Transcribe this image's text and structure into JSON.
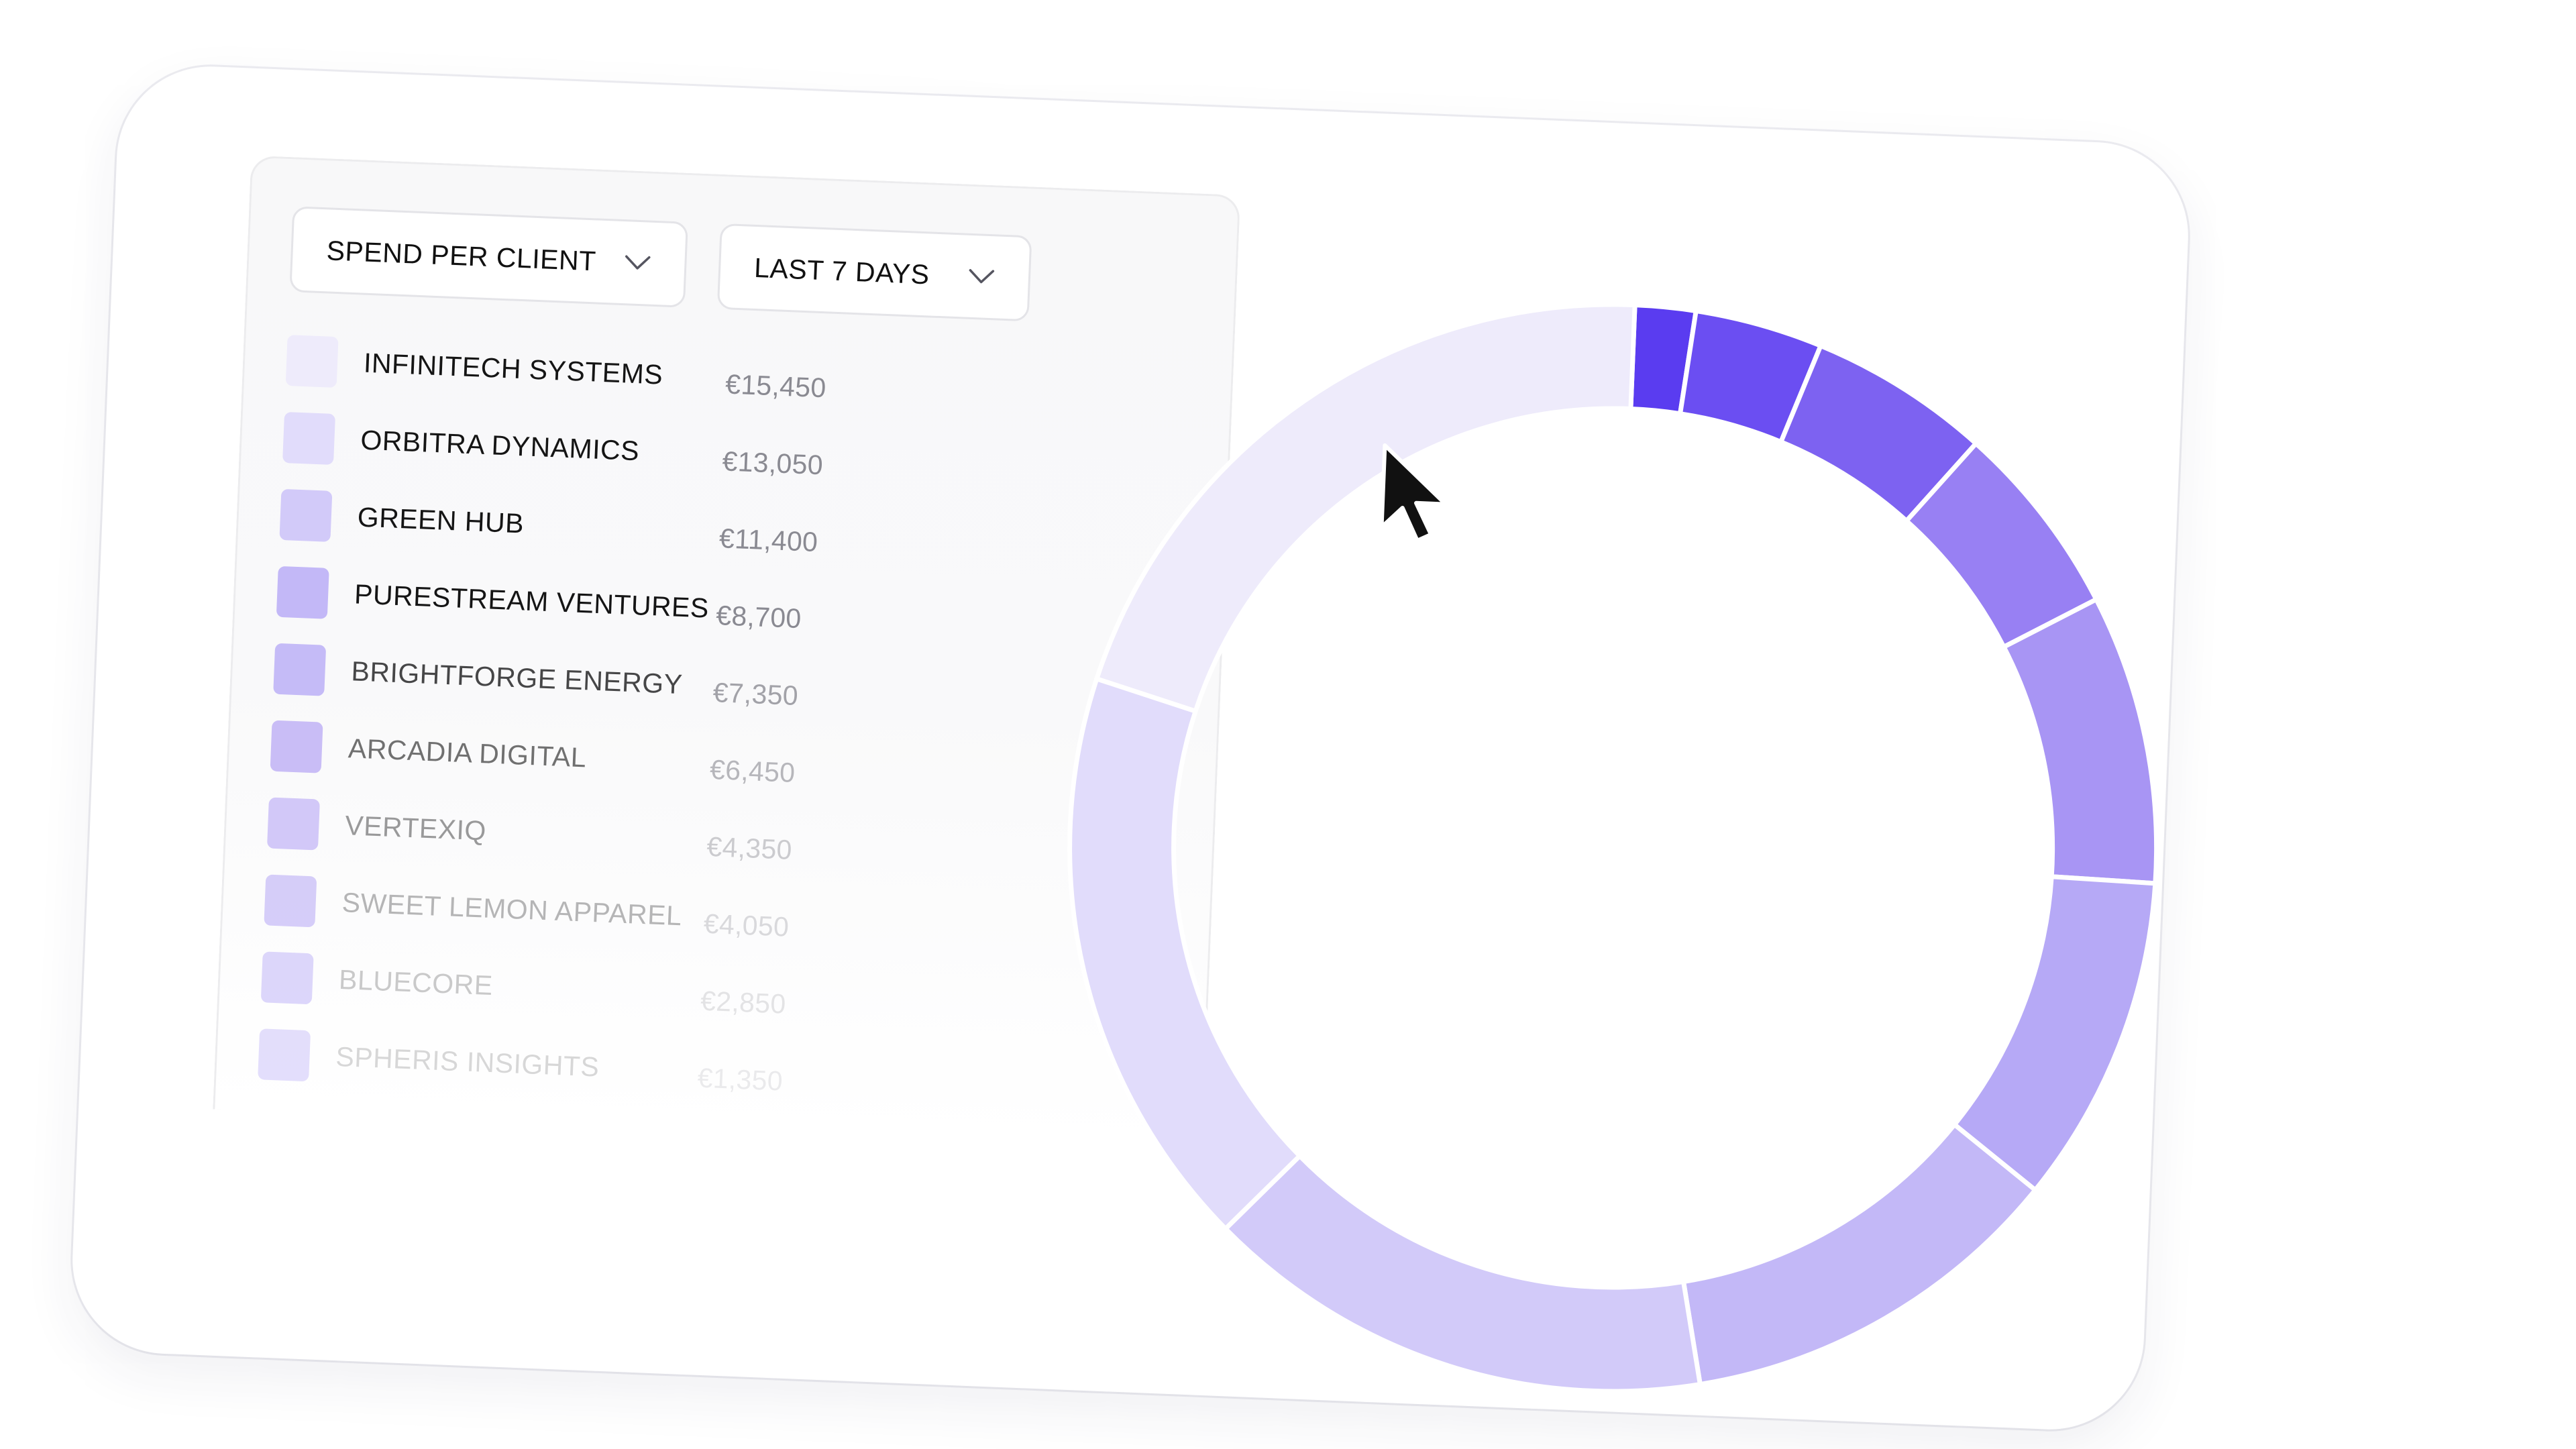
{
  "filters": {
    "metric": "SPEND PER CLIENT",
    "range": "LAST 7 DAYS"
  },
  "icons": {
    "dropdown": "chevron-down-icon",
    "pointer": "mouse-pointer-icon"
  },
  "colors": {
    "accent": "#5a3cf0",
    "ring_base": "#eeebfb"
  },
  "clients": [
    {
      "name": "INFINITECH SYSTEMS",
      "value": "€15,450",
      "color": "#eeebfb"
    },
    {
      "name": "ORBITRA DYNAMICS",
      "value": "€13,050",
      "color": "#e1dcfb"
    },
    {
      "name": "GREEN HUB",
      "value": "€11,400",
      "color": "#d2caf9"
    },
    {
      "name": "PURESTREAM VENTURES",
      "value": "€8,700",
      "color": "#c3b8f7"
    },
    {
      "name": "BRIGHTFORGE ENERGY",
      "value": "€7,350",
      "color": "#b6a9f6"
    },
    {
      "name": "ARCADIA DIGITAL",
      "value": "€6,450",
      "color": "#a895f4"
    },
    {
      "name": "VERTEXIQ",
      "value": "€4,350",
      "color": "#9880f3"
    },
    {
      "name": "SWEET LEMON APPAREL",
      "value": "€4,050",
      "color": "#7d62f1"
    },
    {
      "name": "BLUECORE",
      "value": "€2,850",
      "color": "#6b4ef2"
    },
    {
      "name": "SPHERIS INSIGHTS",
      "value": "€1,350",
      "color": "#5a3cf0"
    }
  ],
  "chart_data": {
    "type": "pie",
    "categories": [
      "INFINITECH SYSTEMS",
      "ORBITRA DYNAMICS",
      "GREEN HUB",
      "PURESTREAM VENTURES",
      "BRIGHTFORGE ENERGY",
      "ARCADIA DIGITAL",
      "VERTEXIQ",
      "SWEET LEMON APPAREL",
      "BLUECORE",
      "SPHERIS INSIGHTS"
    ],
    "values": [
      15450,
      13050,
      11400,
      8700,
      7350,
      6450,
      4350,
      4050,
      2850,
      1350
    ],
    "colors": [
      "#eeebfb",
      "#e1dcfb",
      "#d2caf9",
      "#c3b8f7",
      "#b6a9f6",
      "#a895f4",
      "#9880f3",
      "#7d62f1",
      "#6b4ef2",
      "#5a3cf0"
    ],
    "currency": "€",
    "legend": "left"
  }
}
